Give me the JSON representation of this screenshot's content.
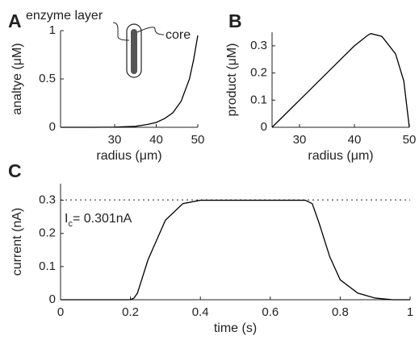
{
  "chart_data": [
    {
      "type": "line",
      "panel_label": "A",
      "xlabel": "radius (μm)",
      "ylabel": "analtye (μM)",
      "annotations": [
        "enzyme layer",
        "core"
      ],
      "x": [
        17,
        20,
        25,
        30,
        35,
        38,
        40,
        42,
        44,
        46,
        48,
        49,
        50
      ],
      "series": [
        {
          "color": "#000000",
          "values": [
            0,
            0,
            0,
            0.002,
            0.01,
            0.03,
            0.05,
            0.09,
            0.15,
            0.27,
            0.5,
            0.7,
            0.95
          ]
        }
      ],
      "xlim": [
        17,
        50
      ],
      "xticks": [
        30,
        40,
        50
      ],
      "ylim": [
        0,
        1
      ],
      "yticks": [
        0,
        0.5,
        1
      ]
    },
    {
      "type": "line",
      "panel_label": "B",
      "xlabel": "radius (μm)",
      "ylabel": "product (μM)",
      "x": [
        25,
        27.5,
        30,
        32.5,
        35,
        37.5,
        40,
        42.5,
        43,
        45,
        47.5,
        49,
        50
      ],
      "series": [
        {
          "color": "#000000",
          "values": [
            0,
            0.05,
            0.1,
            0.15,
            0.2,
            0.25,
            0.3,
            0.34,
            0.345,
            0.335,
            0.27,
            0.17,
            0
          ]
        }
      ],
      "xlim": [
        25,
        50
      ],
      "xticks": [
        30,
        40,
        50
      ],
      "ylim": [
        0,
        0.35
      ],
      "yticks": [
        0,
        0.1,
        0.2,
        0.3
      ]
    },
    {
      "type": "line",
      "panel_label": "C",
      "xlabel": "time (s)",
      "ylabel": "current (nA)",
      "annotation": {
        "main": "I",
        "sub": "c",
        "rest": "= 0.301nA"
      },
      "reference_line": 0.301,
      "x": [
        0,
        0.2,
        0.21,
        0.22,
        0.25,
        0.3,
        0.35,
        0.4,
        0.45,
        0.7,
        0.72,
        0.74,
        0.77,
        0.8,
        0.85,
        0.9,
        0.95,
        1
      ],
      "series": [
        {
          "color": "#000000",
          "values": [
            0,
            0,
            0.005,
            0.02,
            0.12,
            0.24,
            0.29,
            0.3,
            0.3,
            0.3,
            0.29,
            0.23,
            0.13,
            0.06,
            0.02,
            0.005,
            0,
            0
          ]
        }
      ],
      "xlim": [
        0,
        1
      ],
      "xticks": [
        0,
        0.2,
        0.4,
        0.6,
        0.8,
        1
      ],
      "ylim": [
        0,
        0.35
      ],
      "yticks": [
        0,
        0.1,
        0.2,
        0.3
      ]
    }
  ]
}
